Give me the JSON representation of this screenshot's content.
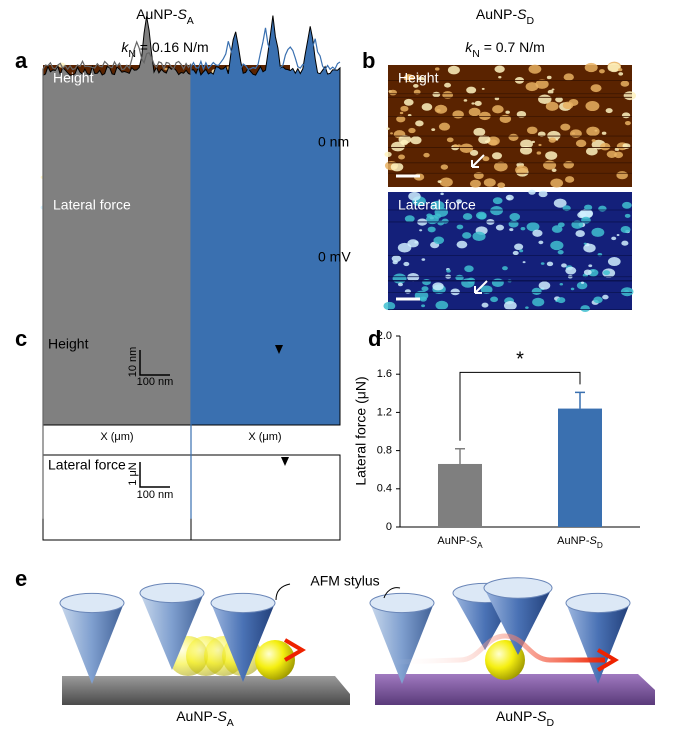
{
  "headers": {
    "left": [
      "AuNP-",
      "S",
      "A"
    ],
    "right": [
      "AuNP-",
      "S",
      "D"
    ]
  },
  "spring": {
    "left": [
      "k",
      "N",
      " = 0.16 N/m"
    ],
    "right": [
      "k",
      "N",
      " = 0.7 N/m"
    ]
  },
  "panel_labels": [
    "a",
    "b",
    "c",
    "d",
    "e"
  ],
  "images": {
    "height": "Height",
    "lateral": "Lateral force",
    "height_bar": "0 nm",
    "lateral_bar": "0 mV"
  },
  "profiles": {
    "height": "Height",
    "height_scale_y": "10 nm",
    "height_scale_x": "100 nm",
    "x_axis": "X (μm)",
    "lateral": "Lateral force",
    "lateral_scale_y": "1 μN",
    "lateral_scale_x": "100 nm"
  },
  "schematic": {
    "stylus": "AFM stylus",
    "left": [
      "AuNP-",
      "S",
      "A"
    ],
    "right": [
      "AuNP-",
      "S",
      "D"
    ]
  },
  "chart_data": {
    "type": "bar",
    "y_label": "Lateral force (μN)",
    "categories": [
      [
        "AuNP-",
        "S",
        "A"
      ],
      [
        "AuNP-",
        "S",
        "D"
      ]
    ],
    "values": [
      0.66,
      1.24
    ],
    "errors": [
      0.16,
      0.17
    ],
    "colors": [
      "#7f7f7f",
      "#3a70b0"
    ],
    "ylim": [
      0,
      2
    ],
    "yticks": [
      0,
      0.4,
      0.8,
      1.2,
      1.6,
      {
        "value": 2,
        "label": "2.0"
      }
    ],
    "annotation": "*"
  }
}
